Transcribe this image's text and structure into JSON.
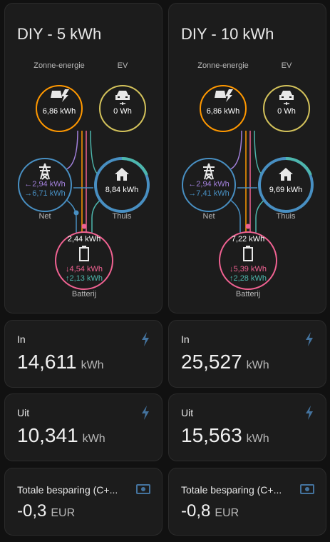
{
  "colors": {
    "solar": "#ff9800",
    "ev": "#d3c25b",
    "grid": "#488fc2",
    "home": "#488fc2",
    "home_accent": "#4db6ac",
    "battery": "#f06292",
    "grid_import": "#a280db",
    "grid_export": "#488fc2",
    "battery_in": "#f06292",
    "battery_out": "#4db6ac",
    "stat_icon": "#44739e"
  },
  "flows": [
    {
      "title": "DIY - 5 kWh",
      "solar": {
        "label": "Zonne-energie",
        "value": "6,86 kWh",
        "icon": "solar-panel-icon"
      },
      "ev": {
        "label": "EV",
        "value": "0 Wh",
        "icon": "car-icon"
      },
      "grid": {
        "label": "Net",
        "import": "2,94 kWh",
        "export": "6,71 kWh",
        "icon": "transmission-tower-icon"
      },
      "home": {
        "label": "Thuis",
        "value": "8,84 kWh",
        "icon": "home-icon"
      },
      "battery": {
        "label": "Batterij",
        "soc": "2,44 kWh",
        "in": "4,54 kWh",
        "out": "2,13 kWh",
        "icon": "battery-icon"
      }
    },
    {
      "title": "DIY - 10 kWh",
      "solar": {
        "label": "Zonne-energie",
        "value": "6,86 kWh",
        "icon": "solar-panel-icon"
      },
      "ev": {
        "label": "EV",
        "value": "0 Wh",
        "icon": "car-icon"
      },
      "grid": {
        "label": "Net",
        "import": "2,94 kWh",
        "export": "7,41 kWh",
        "icon": "transmission-tower-icon"
      },
      "home": {
        "label": "Thuis",
        "value": "9,69 kWh",
        "icon": "home-icon"
      },
      "battery": {
        "label": "Batterij",
        "soc": "7,22 kWh",
        "in": "5,39 kWh",
        "out": "2,28 kWh",
        "icon": "battery-icon"
      }
    }
  ],
  "stats": [
    {
      "title": "In",
      "value": "14,611",
      "unit": "kWh",
      "icon": "lightning-bolt-icon"
    },
    {
      "title": "In",
      "value": "25,527",
      "unit": "kWh",
      "icon": "lightning-bolt-icon"
    },
    {
      "title": "Uit",
      "value": "10,341",
      "unit": "kWh",
      "icon": "lightning-bolt-icon"
    },
    {
      "title": "Uit",
      "value": "15,563",
      "unit": "kWh",
      "icon": "lightning-bolt-icon"
    },
    {
      "title": "Totale besparing (C+...",
      "value": "-0,3",
      "unit": "EUR",
      "icon": "cash-icon"
    },
    {
      "title": "Totale besparing (C+...",
      "value": "-0,8",
      "unit": "EUR",
      "icon": "cash-icon"
    }
  ]
}
